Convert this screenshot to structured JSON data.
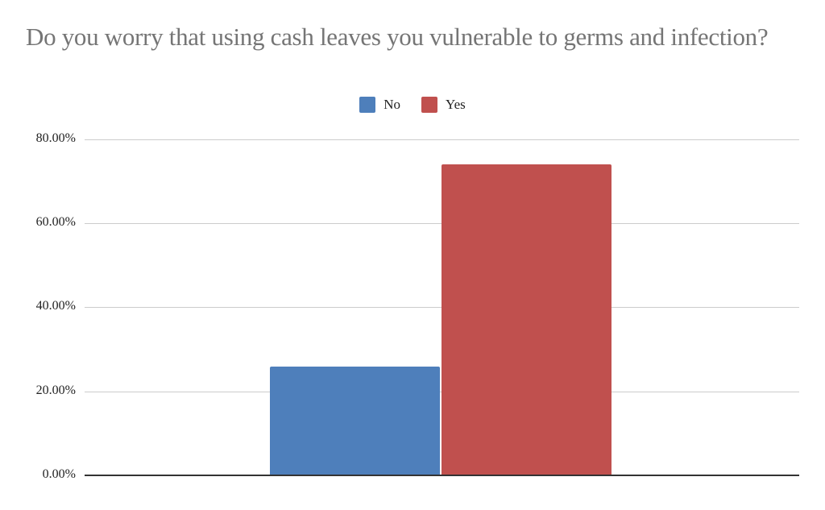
{
  "title": "Do you worry that using cash leaves you vulnerable to germs and infection?",
  "legend": [
    {
      "label": "No",
      "color": "#4e7fbb"
    },
    {
      "label": "Yes",
      "color": "#c0504e"
    }
  ],
  "y_axis": {
    "ticks": [
      "80.00%",
      "60.00%",
      "40.00%",
      "20.00%",
      "0.00%"
    ]
  },
  "chart_data": {
    "type": "bar",
    "title": "Do you worry that using cash leaves you vulnerable to germs and infection?",
    "categories": [
      ""
    ],
    "series": [
      {
        "name": "No",
        "values": [
          25.9
        ],
        "color": "#4e7fbb"
      },
      {
        "name": "Yes",
        "values": [
          74.1
        ],
        "color": "#c0504e"
      }
    ],
    "xlabel": "",
    "ylabel": "",
    "ylim": [
      0,
      80
    ],
    "yticks": [
      "0.00%",
      "20.00%",
      "40.00%",
      "60.00%",
      "80.00%"
    ],
    "grid": true,
    "legend_position": "top"
  }
}
